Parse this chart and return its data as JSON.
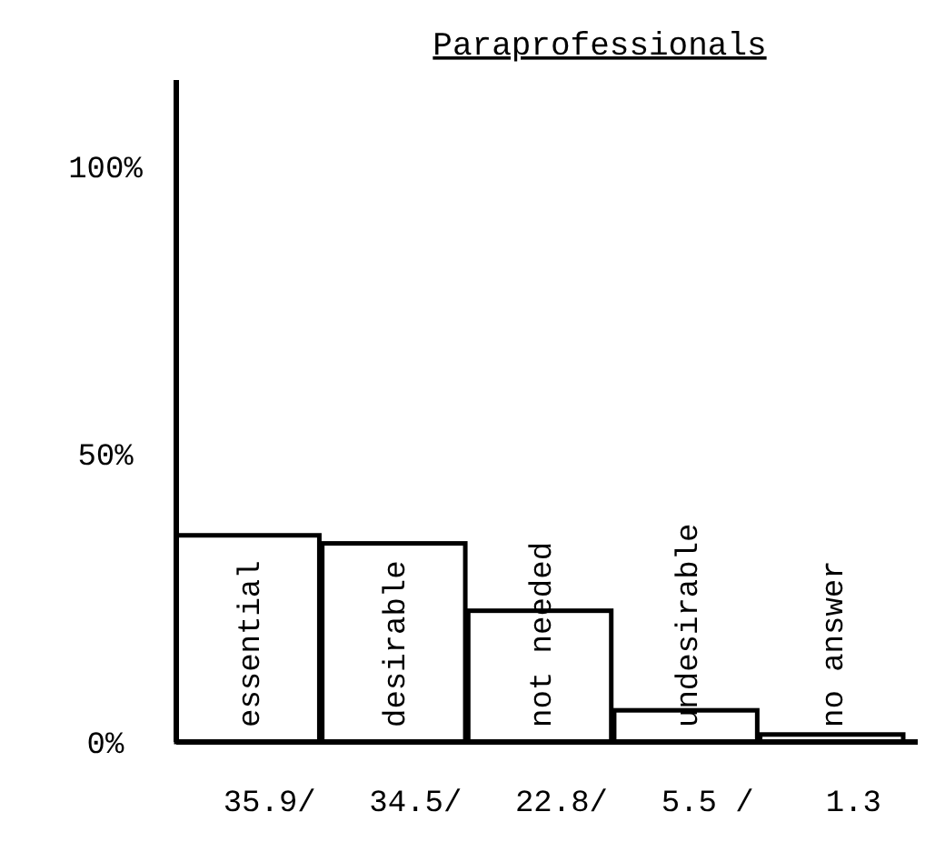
{
  "chart_data": {
    "type": "bar",
    "title": "Paraprofessionals",
    "categories": [
      "essential",
      "desirable",
      "not needed",
      "undesirable",
      "no answer"
    ],
    "values": [
      35.9,
      34.5,
      22.8,
      5.5,
      1.3
    ],
    "color": "#ffffff",
    "ylim": [
      0,
      115
    ],
    "yticks": [
      {
        "value": 0,
        "label": "0%"
      },
      {
        "value": 50,
        "label": "50%"
      },
      {
        "value": 100,
        "label": "100%"
      }
    ],
    "value_labels": [
      "35.9/",
      "34.5/",
      "22.8/",
      "5.5 /",
      "1.3"
    ]
  }
}
